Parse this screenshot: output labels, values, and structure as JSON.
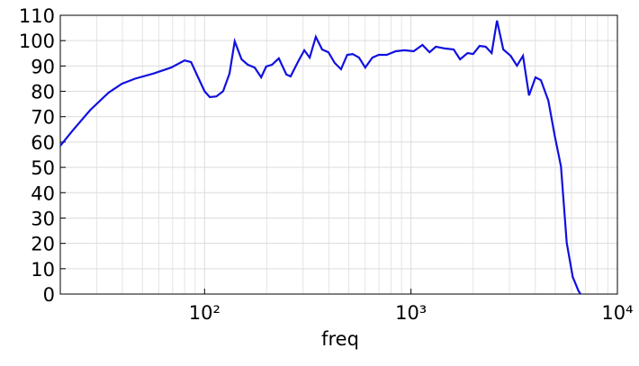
{
  "chart_data": {
    "type": "line",
    "xlabel": "freq",
    "xscale": "log",
    "grid": true,
    "color": "#1010e0",
    "xlim": [
      20,
      10000
    ],
    "xticks": [
      {
        "value": 100,
        "label": "10²"
      },
      {
        "value": 1000,
        "label": "10³"
      },
      {
        "value": 10000,
        "label": "10⁴"
      }
    ],
    "xminorticks": [
      20,
      30,
      40,
      50,
      60,
      70,
      80,
      90,
      200,
      300,
      400,
      500,
      600,
      700,
      800,
      900,
      2000,
      3000,
      4000,
      5000,
      6000,
      7000,
      8000,
      9000
    ],
    "ylim": [
      0,
      110
    ],
    "yticks": [
      0,
      10,
      20,
      30,
      40,
      50,
      60,
      70,
      80,
      90,
      100,
      110
    ],
    "x": [
      20,
      23,
      28,
      34.3,
      39.8,
      46,
      56.5,
      69,
      80,
      86,
      93,
      100,
      106,
      114,
      123,
      132,
      140,
      151,
      162,
      175,
      188,
      199,
      212,
      229,
      249,
      261,
      283,
      304,
      323,
      346,
      371,
      398,
      427,
      458,
      491,
      522,
      560,
      600,
      650,
      698,
      763,
      843,
      931,
      1030,
      1137,
      1230,
      1320,
      1460,
      1610,
      1730,
      1880,
      2000,
      2150,
      2300,
      2460,
      2610,
      2800,
      3040,
      3260,
      3490,
      3730,
      4010,
      4260,
      4630,
      4970,
      5330,
      5680,
      6080,
      6470,
      6740
    ],
    "values": [
      58.5,
      64.6,
      72.7,
      79.5,
      83,
      85,
      87,
      89.4,
      92.2,
      91.5,
      85.5,
      80,
      77.7,
      78,
      80,
      87,
      99.7,
      92.6,
      90.5,
      89.4,
      85.5,
      89.8,
      90.5,
      93,
      86.6,
      85.9,
      91.5,
      96.2,
      93.3,
      101.5,
      96.5,
      95.4,
      91.2,
      88.7,
      94.4,
      94.7,
      93.3,
      89.4,
      93.3,
      94.4,
      94.4,
      95.8,
      96.2,
      95.8,
      98.3,
      95.4,
      97.6,
      96.9,
      96.5,
      92.6,
      95.1,
      94.7,
      97.9,
      97.6,
      95.1,
      107.9,
      96.5,
      94,
      90.1,
      94,
      78.4,
      85.5,
      84.4,
      76.3,
      62.4,
      50.4,
      20.2,
      6.7,
      1.4,
      -1
    ]
  }
}
